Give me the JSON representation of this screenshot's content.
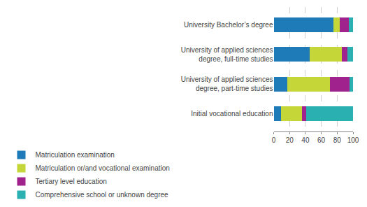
{
  "chart_data": {
    "type": "bar",
    "orientation": "horizontal",
    "stacked": true,
    "categories": [
      "Initial vocational education",
      "University of applied sciences\ndegree, part-time studies",
      "University of applied sciences\ndegree, full-time studies",
      "University Bachelor’s degree"
    ],
    "series": [
      {
        "name": "Matriculation examination",
        "color": "#1f7bb8",
        "values": [
          9,
          17,
          45,
          75
        ]
      },
      {
        "name": "Matriculation or/and vocational examination",
        "color": "#c5d638",
        "values": [
          27,
          54,
          41,
          8
        ]
      },
      {
        "name": "Tertiary level education",
        "color": "#a0228c",
        "values": [
          5,
          25,
          7,
          12
        ]
      },
      {
        "name": "Comprehensive school or unknown degree",
        "color": "#2ab0b0",
        "values": [
          59,
          4,
          7,
          5
        ]
      }
    ],
    "xlim": [
      0,
      100
    ],
    "xticks": [
      0,
      20,
      40,
      60,
      80,
      100
    ],
    "grid": true,
    "legend": "lower left"
  }
}
